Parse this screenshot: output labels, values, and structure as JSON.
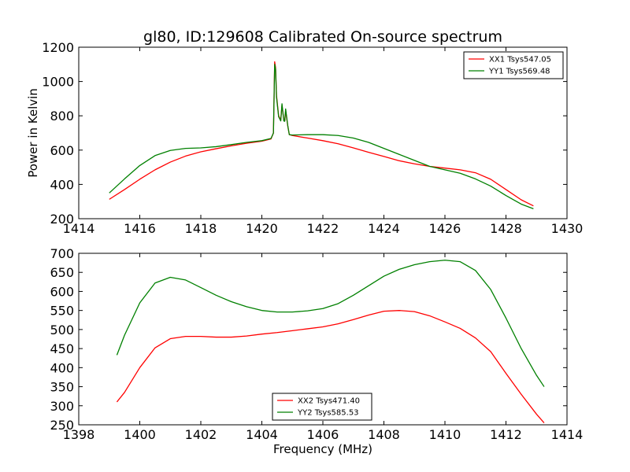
{
  "title": "gl80, ID:129608 Calibrated On-source spectrum",
  "chart_data": [
    {
      "type": "line",
      "panel": "top",
      "xlabel": "",
      "ylabel": "Power in Kelvin",
      "xlim": [
        1414,
        1430
      ],
      "ylim": [
        200,
        1200
      ],
      "xticks": [
        1414,
        1416,
        1418,
        1420,
        1422,
        1424,
        1426,
        1428,
        1430
      ],
      "yticks": [
        200,
        400,
        600,
        800,
        1000,
        1200
      ],
      "legend_position": "top-right",
      "series": [
        {
          "name": "XX1 Tsys547.05",
          "color": "#ff0000",
          "x": [
            1415.0,
            1415.5,
            1416.0,
            1416.5,
            1417.0,
            1417.5,
            1418.0,
            1418.5,
            1419.0,
            1419.5,
            1420.0,
            1420.3,
            1420.38,
            1420.42,
            1420.45,
            1420.48,
            1420.55,
            1420.62,
            1420.66,
            1420.72,
            1420.75,
            1420.78,
            1420.85,
            1420.9,
            1421.0,
            1421.5,
            1422.0,
            1422.5,
            1423.0,
            1423.5,
            1424.0,
            1424.5,
            1425.0,
            1425.5,
            1426.0,
            1426.5,
            1427.0,
            1427.5,
            1428.0,
            1428.5,
            1428.9
          ],
          "y": [
            313,
            370,
            430,
            485,
            530,
            565,
            590,
            608,
            625,
            640,
            652,
            665,
            700,
            1115,
            1080,
            920,
            800,
            775,
            860,
            775,
            770,
            830,
            740,
            690,
            685,
            670,
            655,
            637,
            613,
            587,
            563,
            538,
            520,
            505,
            495,
            485,
            468,
            430,
            370,
            310,
            275
          ]
        },
        {
          "name": "YY1 Tsys569.48",
          "color": "#008000",
          "x": [
            1415.0,
            1415.5,
            1416.0,
            1416.5,
            1417.0,
            1417.5,
            1418.0,
            1418.5,
            1419.0,
            1419.5,
            1420.0,
            1420.3,
            1420.38,
            1420.42,
            1420.45,
            1420.48,
            1420.55,
            1420.62,
            1420.66,
            1420.72,
            1420.75,
            1420.78,
            1420.85,
            1420.9,
            1421.0,
            1421.5,
            1422.0,
            1422.5,
            1423.0,
            1423.5,
            1424.0,
            1424.5,
            1425.0,
            1425.5,
            1426.0,
            1426.5,
            1427.0,
            1427.5,
            1428.0,
            1428.5,
            1428.9
          ],
          "y": [
            350,
            432,
            510,
            568,
            598,
            610,
            613,
            620,
            632,
            645,
            655,
            668,
            700,
            1100,
            1070,
            910,
            795,
            770,
            870,
            770,
            768,
            840,
            742,
            690,
            688,
            690,
            690,
            685,
            670,
            645,
            610,
            575,
            540,
            505,
            485,
            465,
            432,
            390,
            335,
            285,
            258
          ]
        }
      ]
    },
    {
      "type": "line",
      "panel": "bottom",
      "xlabel": "Frequency (MHz)",
      "ylabel": "",
      "xlim": [
        1398,
        1414
      ],
      "ylim": [
        250,
        700
      ],
      "xticks": [
        1398,
        1400,
        1402,
        1404,
        1406,
        1408,
        1410,
        1412,
        1414
      ],
      "yticks": [
        250,
        300,
        350,
        400,
        450,
        500,
        550,
        600,
        650,
        700
      ],
      "legend_position": "bottom-center",
      "series": [
        {
          "name": "XX2 Tsys471.40",
          "color": "#ff0000",
          "x": [
            1399.25,
            1399.5,
            1400.0,
            1400.5,
            1401.0,
            1401.5,
            1402.0,
            1402.5,
            1403.0,
            1403.5,
            1404.0,
            1404.5,
            1405.0,
            1405.5,
            1406.0,
            1406.5,
            1407.0,
            1407.5,
            1408.0,
            1408.5,
            1409.0,
            1409.5,
            1410.0,
            1410.5,
            1411.0,
            1411.5,
            1412.0,
            1412.5,
            1413.0,
            1413.25
          ],
          "y": [
            310,
            335,
            400,
            452,
            476,
            482,
            482,
            480,
            480,
            483,
            488,
            492,
            497,
            502,
            507,
            515,
            526,
            538,
            548,
            550,
            547,
            536,
            520,
            503,
            478,
            442,
            385,
            330,
            278,
            255
          ]
        },
        {
          "name": "YY2 Tsys585.53",
          "color": "#008000",
          "x": [
            1399.25,
            1399.5,
            1400.0,
            1400.5,
            1401.0,
            1401.5,
            1402.0,
            1402.5,
            1403.0,
            1403.5,
            1404.0,
            1404.5,
            1405.0,
            1405.5,
            1406.0,
            1406.5,
            1407.0,
            1407.5,
            1408.0,
            1408.5,
            1409.0,
            1409.5,
            1410.0,
            1410.5,
            1411.0,
            1411.5,
            1412.0,
            1412.5,
            1413.0,
            1413.25
          ],
          "y": [
            433,
            485,
            570,
            622,
            637,
            630,
            610,
            590,
            573,
            560,
            550,
            546,
            546,
            549,
            555,
            568,
            590,
            615,
            640,
            658,
            670,
            678,
            682,
            678,
            655,
            605,
            530,
            450,
            380,
            350
          ]
        }
      ]
    }
  ]
}
